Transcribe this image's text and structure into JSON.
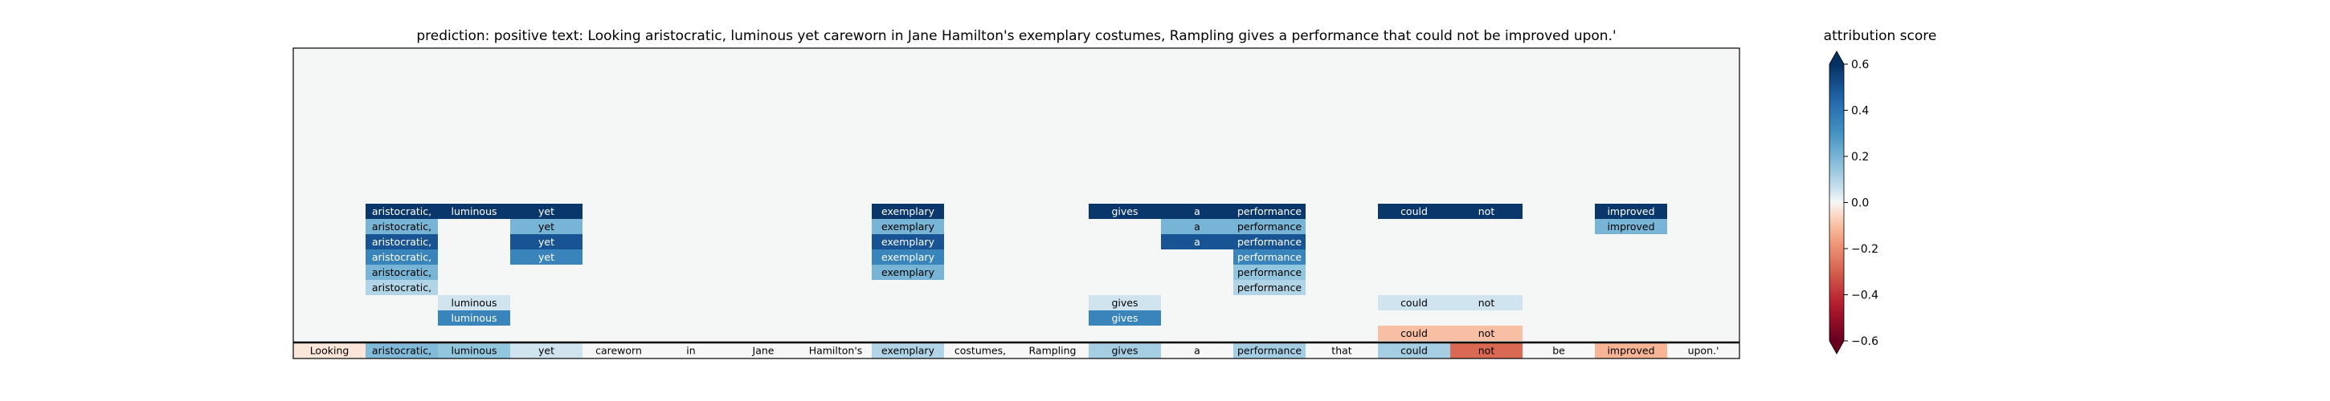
{
  "chart_data": {
    "type": "heatmap",
    "title": "prediction:  positive     text:  Looking aristocratic, luminous yet careworn in Jane Hamilton's exemplary costumes, Rampling gives a performance that could not be improved upon.'",
    "colorbar_title": "attribution score",
    "colorbar_ticks": [
      0.6,
      0.4,
      0.2,
      0.0,
      -0.2,
      -0.4,
      -0.6
    ],
    "colorbar_tick_labels": [
      "0.6",
      "0.4",
      "0.2",
      "0.0",
      "−0.2",
      "−0.4",
      "−0.6"
    ],
    "vmin": -0.6,
    "vmax": 0.6,
    "colormap": "RdBu",
    "background_color": "#f5f7f7",
    "tokens": [
      "Looking",
      "aristocratic,",
      "luminous",
      "yet",
      "careworn",
      "in",
      "Jane",
      "Hamilton's",
      "exemplary",
      "costumes,",
      "Rampling",
      "gives",
      "a",
      "performance",
      "that",
      "could",
      "not",
      "be",
      "improved",
      "upon.'"
    ],
    "base_scores": [
      -0.03,
      0.18,
      0.15,
      0.05,
      0.0,
      0.0,
      0.0,
      0.0,
      0.1,
      0.0,
      0.0,
      0.12,
      0.0,
      0.12,
      0.0,
      0.12,
      -0.28,
      0.0,
      -0.12,
      0.0
    ],
    "rows": [
      {
        "row": 0,
        "cells": [
          {
            "token": 1,
            "score": 0.58
          },
          {
            "token": 2,
            "score": 0.58
          },
          {
            "token": 3,
            "score": 0.58
          },
          {
            "token": 8,
            "score": 0.58
          },
          {
            "token": 11,
            "score": 0.58
          },
          {
            "token": 12,
            "score": 0.58
          },
          {
            "token": 13,
            "score": 0.58
          },
          {
            "token": 15,
            "score": 0.58
          },
          {
            "token": 16,
            "score": 0.58
          },
          {
            "token": 18,
            "score": 0.58
          }
        ]
      },
      {
        "row": 1,
        "cells": [
          {
            "token": 1,
            "score": 0.2
          },
          {
            "token": 3,
            "score": 0.2
          },
          {
            "token": 8,
            "score": 0.2
          },
          {
            "token": 12,
            "score": 0.2
          },
          {
            "token": 13,
            "score": 0.2
          },
          {
            "token": 18,
            "score": 0.2
          }
        ]
      },
      {
        "row": 2,
        "cells": [
          {
            "token": 1,
            "score": 0.5
          },
          {
            "token": 3,
            "score": 0.5
          },
          {
            "token": 8,
            "score": 0.5
          },
          {
            "token": 12,
            "score": 0.5
          },
          {
            "token": 13,
            "score": 0.5
          }
        ]
      },
      {
        "row": 3,
        "cells": [
          {
            "token": 1,
            "score": 0.35
          },
          {
            "token": 3,
            "score": 0.35
          },
          {
            "token": 8,
            "score": 0.35
          },
          {
            "token": 13,
            "score": 0.35
          }
        ]
      },
      {
        "row": 4,
        "cells": [
          {
            "token": 1,
            "score": 0.2
          },
          {
            "token": 8,
            "score": 0.2
          },
          {
            "token": 13,
            "score": 0.15
          }
        ]
      },
      {
        "row": 5,
        "cells": [
          {
            "token": 1,
            "score": 0.1
          },
          {
            "token": 13,
            "score": 0.1
          }
        ]
      },
      {
        "row": 6,
        "cells": [
          {
            "token": 2,
            "score": 0.05
          },
          {
            "token": 11,
            "score": 0.05
          },
          {
            "token": 15,
            "score": 0.05
          },
          {
            "token": 16,
            "score": 0.05
          }
        ]
      },
      {
        "row": 7,
        "cells": [
          {
            "token": 2,
            "score": 0.35
          },
          {
            "token": 11,
            "score": 0.35
          }
        ]
      },
      {
        "row": 8,
        "cells": [
          {
            "token": 15,
            "score": -0.1
          },
          {
            "token": 16,
            "score": -0.1
          }
        ]
      }
    ]
  }
}
